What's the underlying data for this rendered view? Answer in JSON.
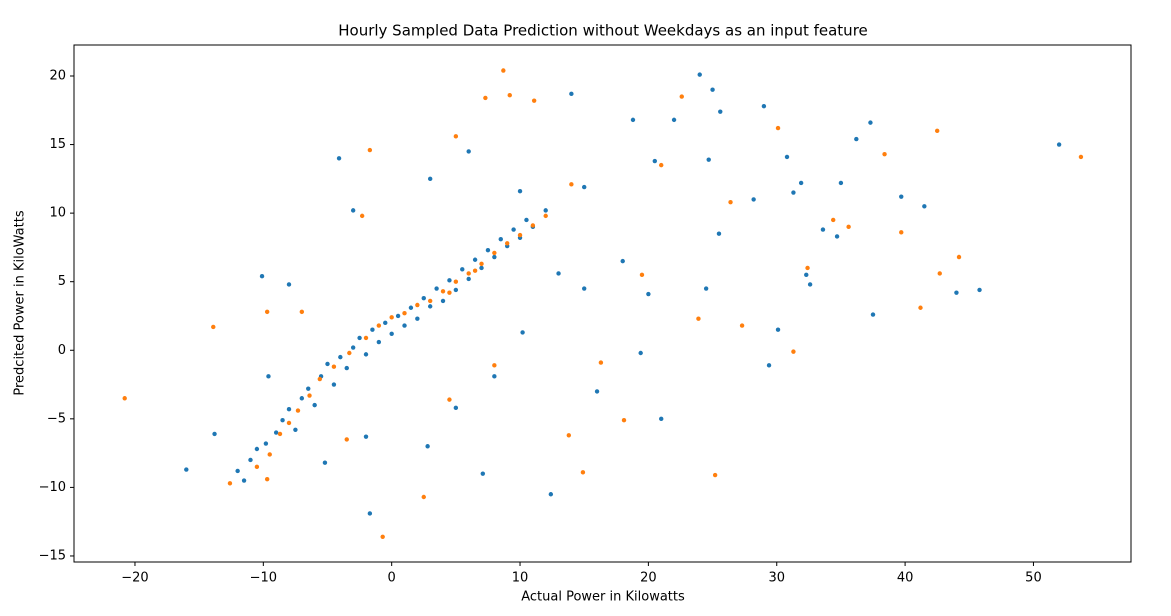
{
  "chart_data": {
    "type": "scatter",
    "title": "Hourly Sampled Data Prediction without Weekdays as an input feature",
    "x_label": "Actual Power in Kilowatts",
    "y_label": "Predcited Power in KiloWatts",
    "xlim": [
      -24.75,
      57.6
    ],
    "ylim": [
      -15.44,
      22.26
    ],
    "xticks": [
      {
        "value": -20,
        "label": "−20"
      },
      {
        "value": -10,
        "label": "−10"
      },
      0,
      10,
      20,
      30,
      40,
      50
    ],
    "yticks": [
      {
        "value": -15,
        "label": "−15"
      },
      {
        "value": -10,
        "label": "−10"
      },
      {
        "value": -5,
        "label": "−5"
      },
      0,
      5,
      10,
      15,
      20
    ],
    "grid": false,
    "series": [
      {
        "color": "#1f77b4",
        "x": [
          52,
          45.8,
          44,
          41.5,
          39.7,
          37.5,
          37.3,
          36.2,
          35,
          34.7,
          33.6,
          32.6,
          32.3,
          31.9,
          31.3,
          30.8,
          30.1,
          29.4,
          29,
          25.6,
          25,
          24,
          21,
          19.4,
          12.4,
          7.1,
          -1.7,
          -16,
          -13.8,
          -10.1,
          -4.1,
          14,
          18.8,
          22,
          28.2,
          25.5,
          24.7,
          20.5,
          18,
          15,
          13,
          10.2,
          8,
          5,
          -12,
          -11,
          -10.5,
          -9.8,
          -9,
          -8.5,
          -8,
          -7.5,
          -7,
          -6.5,
          -6,
          -5.5,
          -5,
          -4.5,
          -4,
          -3.5,
          -3,
          -2.5,
          -2,
          -1.5,
          -1,
          -0.5,
          0,
          0.5,
          1,
          1.5,
          2,
          2.5,
          3,
          3.5,
          4,
          4.5,
          5,
          5.5,
          6,
          6.5,
          7,
          7.5,
          8,
          8.5,
          9,
          9.5,
          10,
          10.5,
          11,
          12,
          -8,
          -3,
          3,
          6,
          10,
          15,
          2.8,
          -5.2,
          -2,
          16,
          -9.6,
          20,
          24.5,
          -11.5
        ],
        "values": [
          15,
          4.4,
          4.2,
          10.5,
          11.2,
          2.6,
          16.6,
          15.4,
          12.2,
          8.3,
          8.8,
          4.8,
          5.5,
          12.2,
          11.5,
          14.1,
          1.5,
          -1.1,
          17.8,
          17.4,
          19,
          20.1,
          -5,
          -0.2,
          -10.5,
          -9,
          -11.9,
          -8.7,
          -6.1,
          5.4,
          14,
          18.7,
          16.8,
          16.8,
          11,
          8.5,
          13.9,
          13.8,
          6.5,
          4.5,
          5.6,
          1.3,
          -1.9,
          -4.2,
          -8.8,
          -8,
          -7.2,
          -6.8,
          -6,
          -5.1,
          -4.3,
          -5.8,
          -3.5,
          -2.8,
          -4,
          -1.9,
          -1,
          -2.5,
          -0.5,
          -1.3,
          0.2,
          0.9,
          -0.3,
          1.5,
          0.6,
          2,
          1.2,
          2.5,
          1.8,
          3.1,
          2.3,
          3.8,
          3.2,
          4.5,
          3.6,
          5.1,
          4.4,
          5.9,
          5.2,
          6.6,
          6,
          7.3,
          6.8,
          8.1,
          7.6,
          8.8,
          8.2,
          9.5,
          9,
          10.2,
          4.8,
          10.2,
          12.5,
          14.5,
          11.6,
          11.9,
          -7,
          -8.2,
          -6.3,
          -3,
          -1.9,
          4.1,
          4.5,
          -9.5
        ]
      },
      {
        "color": "#ff7f0e",
        "x": [
          53.7,
          44.2,
          42.7,
          42.5,
          41.2,
          39.7,
          38.4,
          35.6,
          34.4,
          32.4,
          31.3,
          30.1,
          27.3,
          26.4,
          25.2,
          22.6,
          21,
          18.1,
          16.3,
          14.9,
          13.8,
          8.7,
          9.2,
          7.3,
          11.1,
          -20.8,
          -13.9,
          -9.7,
          -1.7,
          2.5,
          -0.7,
          -12.6,
          -10.5,
          -9.5,
          -8.7,
          -8,
          -7.3,
          -6.4,
          -5.6,
          -4.5,
          -3.3,
          -2,
          -1,
          0,
          1,
          2,
          3,
          4,
          5,
          6,
          7,
          8,
          9,
          10,
          11,
          12,
          4.5,
          6.5,
          -7,
          -2.3,
          5,
          14,
          19.5,
          23.9,
          8,
          4.5,
          -3.5,
          -9.7
        ],
        "values": [
          14.1,
          6.8,
          5.6,
          16,
          3.1,
          8.6,
          14.3,
          9,
          9.5,
          6,
          -0.1,
          16.2,
          1.8,
          10.8,
          -9.1,
          18.5,
          13.5,
          -5.1,
          -0.9,
          -8.9,
          -6.2,
          20.4,
          18.6,
          18.4,
          18.2,
          -3.5,
          1.7,
          2.8,
          14.6,
          -10.7,
          -13.6,
          -9.7,
          -8.5,
          -7.6,
          -6.1,
          -5.3,
          -4.4,
          -3.3,
          -2.1,
          -1.2,
          -0.2,
          0.9,
          1.8,
          2.4,
          2.7,
          3.3,
          3.6,
          4.3,
          5,
          5.6,
          6.3,
          7.1,
          7.8,
          8.4,
          9.1,
          9.8,
          4.2,
          5.8,
          2.8,
          9.8,
          15.6,
          12.1,
          5.5,
          2.3,
          -1.1,
          -3.6,
          -6.5,
          -9.4
        ]
      }
    ]
  }
}
